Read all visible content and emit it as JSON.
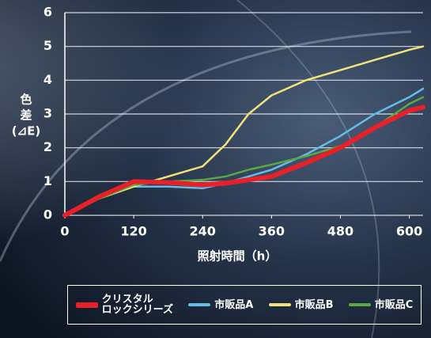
{
  "chart_data": {
    "type": "line",
    "y_label": [
      "色",
      "差",
      "(⊿E)"
    ],
    "x_label": "照射時間（h）",
    "x": [
      0,
      60,
      120,
      180,
      240,
      280,
      320,
      360,
      420,
      480,
      540,
      600,
      624
    ],
    "xlim": [
      0,
      624
    ],
    "xticks": [
      0,
      120,
      240,
      360,
      480,
      600
    ],
    "ylim": [
      0,
      6
    ],
    "yticks": [
      0,
      1,
      2,
      3,
      4,
      5,
      6
    ],
    "grid": true,
    "legend": "bottom",
    "series": [
      {
        "name": "クリスタル\nロックシリーズ",
        "color": "#e8202a",
        "values": [
          0,
          0.55,
          1.0,
          0.97,
          0.9,
          0.95,
          1.05,
          1.15,
          1.55,
          2.0,
          2.6,
          3.1,
          3.2
        ]
      },
      {
        "name": "市販品A",
        "color": "#62bde8",
        "values": [
          0,
          0.5,
          0.85,
          0.85,
          0.8,
          0.95,
          1.15,
          1.35,
          1.8,
          2.35,
          3.0,
          3.5,
          3.75
        ]
      },
      {
        "name": "市販品B",
        "color": "#f2e27a",
        "values": [
          0,
          0.5,
          0.85,
          1.15,
          1.45,
          2.1,
          3.0,
          3.55,
          4.0,
          4.3,
          4.6,
          4.9,
          5.0
        ]
      },
      {
        "name": "市販品C",
        "color": "#5aa845",
        "values": [
          0,
          0.5,
          0.9,
          1.0,
          1.05,
          1.15,
          1.35,
          1.5,
          1.75,
          2.05,
          2.6,
          3.3,
          3.5
        ]
      }
    ]
  }
}
